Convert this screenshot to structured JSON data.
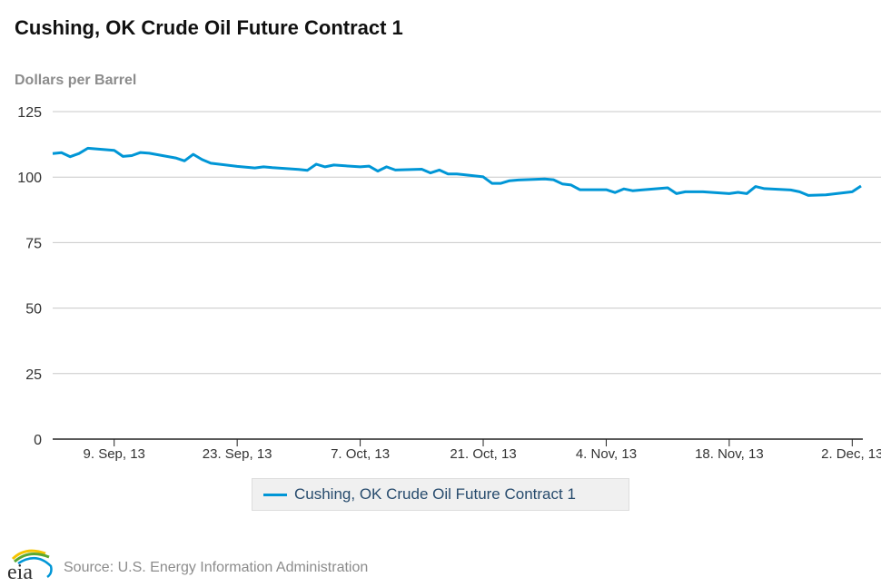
{
  "chart_data": {
    "type": "line",
    "title": "Cushing, OK Crude Oil Future Contract 1",
    "ylabel": "Dollars per Barrel",
    "xlabel": "",
    "ylim": [
      0,
      125
    ],
    "yticks": [
      0,
      25,
      50,
      75,
      100,
      125
    ],
    "grid": true,
    "legend_position": "bottom-center",
    "xticks": [
      {
        "date": "2013-09-09",
        "label": "9. Sep, 13"
      },
      {
        "date": "2013-09-23",
        "label": "23. Sep, 13"
      },
      {
        "date": "2013-10-07",
        "label": "7. Oct, 13"
      },
      {
        "date": "2013-10-21",
        "label": "21. Oct, 13"
      },
      {
        "date": "2013-11-04",
        "label": "4. Nov, 13"
      },
      {
        "date": "2013-11-18",
        "label": "18. Nov, 13"
      },
      {
        "date": "2013-12-02",
        "label": "2. Dec, 13"
      }
    ],
    "xlim": [
      "2013-09-02",
      "2013-12-03"
    ],
    "series": [
      {
        "name": "Cushing, OK Crude Oil Future Contract 1",
        "color": "#0096d6",
        "points": [
          [
            "2013-09-02",
            109.0
          ],
          [
            "2013-09-03",
            109.3
          ],
          [
            "2013-09-04",
            107.8
          ],
          [
            "2013-09-05",
            109.0
          ],
          [
            "2013-09-06",
            111.0
          ],
          [
            "2013-09-09",
            110.2
          ],
          [
            "2013-09-10",
            107.9
          ],
          [
            "2013-09-11",
            108.2
          ],
          [
            "2013-09-12",
            109.4
          ],
          [
            "2013-09-13",
            109.1
          ],
          [
            "2013-09-16",
            107.3
          ],
          [
            "2013-09-17",
            106.2
          ],
          [
            "2013-09-18",
            108.7
          ],
          [
            "2013-09-19",
            106.7
          ],
          [
            "2013-09-20",
            105.3
          ],
          [
            "2013-09-23",
            104.1
          ],
          [
            "2013-09-24",
            103.8
          ],
          [
            "2013-09-25",
            103.5
          ],
          [
            "2013-09-26",
            103.9
          ],
          [
            "2013-09-27",
            103.6
          ],
          [
            "2013-09-30",
            102.9
          ],
          [
            "2013-10-01",
            102.6
          ],
          [
            "2013-10-02",
            104.9
          ],
          [
            "2013-10-03",
            103.9
          ],
          [
            "2013-10-04",
            104.6
          ],
          [
            "2013-10-07",
            103.9
          ],
          [
            "2013-10-08",
            104.2
          ],
          [
            "2013-10-09",
            102.3
          ],
          [
            "2013-10-10",
            103.9
          ],
          [
            "2013-10-11",
            102.7
          ],
          [
            "2013-10-14",
            103.0
          ],
          [
            "2013-10-15",
            101.6
          ],
          [
            "2013-10-16",
            102.7
          ],
          [
            "2013-10-17",
            101.2
          ],
          [
            "2013-10-18",
            101.2
          ],
          [
            "2013-10-21",
            100.1
          ],
          [
            "2013-10-22",
            97.6
          ],
          [
            "2013-10-23",
            97.6
          ],
          [
            "2013-10-24",
            98.6
          ],
          [
            "2013-10-25",
            98.9
          ],
          [
            "2013-10-28",
            99.3
          ],
          [
            "2013-10-29",
            99.0
          ],
          [
            "2013-10-30",
            97.4
          ],
          [
            "2013-10-31",
            97.0
          ],
          [
            "2013-11-01",
            95.2
          ],
          [
            "2013-11-04",
            95.2
          ],
          [
            "2013-11-05",
            94.1
          ],
          [
            "2013-11-06",
            95.5
          ],
          [
            "2013-11-07",
            94.8
          ],
          [
            "2013-11-08",
            95.1
          ],
          [
            "2013-11-11",
            95.9
          ],
          [
            "2013-11-12",
            93.7
          ],
          [
            "2013-11-13",
            94.4
          ],
          [
            "2013-11-14",
            94.4
          ],
          [
            "2013-11-15",
            94.4
          ],
          [
            "2013-11-18",
            93.7
          ],
          [
            "2013-11-19",
            94.2
          ],
          [
            "2013-11-20",
            93.7
          ],
          [
            "2013-11-21",
            96.4
          ],
          [
            "2013-11-22",
            95.6
          ],
          [
            "2013-11-25",
            95.1
          ],
          [
            "2013-11-26",
            94.4
          ],
          [
            "2013-11-27",
            93.0
          ],
          [
            "2013-11-29",
            93.2
          ],
          [
            "2013-12-02",
            94.4
          ],
          [
            "2013-12-03",
            96.6
          ]
        ]
      }
    ]
  },
  "source": "Source: U.S. Energy Information Administration",
  "logo_text": "eia"
}
